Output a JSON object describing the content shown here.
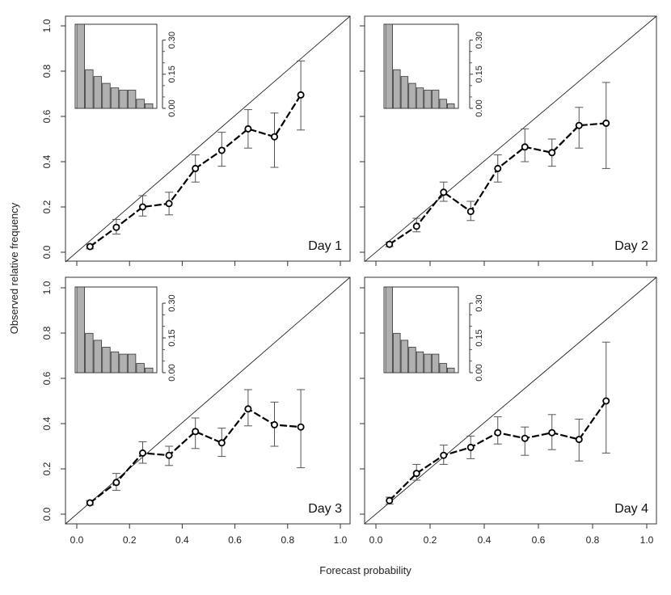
{
  "chart_data": [
    {
      "type": "line",
      "panel_label": "Day 1",
      "x": [
        0.05,
        0.15,
        0.25,
        0.35,
        0.45,
        0.55,
        0.65,
        0.75,
        0.85
      ],
      "y": [
        0.025,
        0.11,
        0.2,
        0.215,
        0.37,
        0.45,
        0.545,
        0.51,
        0.695
      ],
      "err_low": [
        0.015,
        0.08,
        0.16,
        0.165,
        0.31,
        0.38,
        0.46,
        0.375,
        0.54
      ],
      "err_high": [
        0.035,
        0.145,
        0.25,
        0.265,
        0.43,
        0.53,
        0.63,
        0.615,
        0.845
      ],
      "inset_hist": [
        0.37,
        0.17,
        0.14,
        0.11,
        0.09,
        0.08,
        0.08,
        0.04,
        0.02
      ],
      "xlim": [
        0,
        1
      ],
      "ylim": [
        0,
        1
      ],
      "inset_ylim": [
        0,
        0.37
      ]
    },
    {
      "type": "line",
      "panel_label": "Day 2",
      "x": [
        0.05,
        0.15,
        0.25,
        0.35,
        0.45,
        0.55,
        0.65,
        0.75,
        0.85
      ],
      "y": [
        0.035,
        0.115,
        0.265,
        0.18,
        0.37,
        0.465,
        0.44,
        0.56,
        0.57
      ],
      "err_low": [
        0.025,
        0.09,
        0.225,
        0.14,
        0.31,
        0.4,
        0.38,
        0.46,
        0.37
      ],
      "err_high": [
        0.045,
        0.15,
        0.31,
        0.225,
        0.43,
        0.545,
        0.5,
        0.64,
        0.75
      ],
      "inset_hist": [
        0.37,
        0.17,
        0.14,
        0.11,
        0.09,
        0.08,
        0.08,
        0.04,
        0.02
      ],
      "xlim": [
        0,
        1
      ],
      "ylim": [
        0,
        1
      ],
      "inset_ylim": [
        0,
        0.37
      ]
    },
    {
      "type": "line",
      "panel_label": "Day 3",
      "x": [
        0.05,
        0.15,
        0.25,
        0.35,
        0.45,
        0.55,
        0.65,
        0.75,
        0.85
      ],
      "y": [
        0.05,
        0.14,
        0.27,
        0.26,
        0.365,
        0.315,
        0.465,
        0.395,
        0.385
      ],
      "err_low": [
        0.04,
        0.105,
        0.225,
        0.215,
        0.29,
        0.255,
        0.39,
        0.3,
        0.205
      ],
      "err_high": [
        0.06,
        0.18,
        0.32,
        0.3,
        0.425,
        0.38,
        0.55,
        0.495,
        0.55
      ],
      "inset_hist": [
        0.37,
        0.17,
        0.14,
        0.11,
        0.09,
        0.08,
        0.08,
        0.04,
        0.02
      ],
      "xlim": [
        0,
        1
      ],
      "ylim": [
        0,
        1
      ],
      "inset_ylim": [
        0,
        0.37
      ]
    },
    {
      "type": "line",
      "panel_label": "Day 4",
      "x": [
        0.05,
        0.15,
        0.25,
        0.35,
        0.45,
        0.55,
        0.65,
        0.75,
        0.85
      ],
      "y": [
        0.06,
        0.18,
        0.26,
        0.295,
        0.36,
        0.335,
        0.36,
        0.33,
        0.5
      ],
      "err_low": [
        0.045,
        0.15,
        0.22,
        0.245,
        0.31,
        0.26,
        0.285,
        0.235,
        0.27
      ],
      "err_high": [
        0.075,
        0.22,
        0.305,
        0.345,
        0.43,
        0.385,
        0.44,
        0.42,
        0.76
      ],
      "inset_hist": [
        0.37,
        0.17,
        0.14,
        0.11,
        0.09,
        0.08,
        0.08,
        0.04,
        0.02
      ],
      "xlim": [
        0,
        1
      ],
      "ylim": [
        0,
        1
      ],
      "inset_ylim": [
        0,
        0.37
      ]
    }
  ],
  "axes": {
    "xlabel": "Forecast probability",
    "ylabel": "Observed relative frequency",
    "x_ticks": [
      "0.0",
      "0.2",
      "0.4",
      "0.6",
      "0.8",
      "1.0"
    ],
    "y_ticks": [
      "0.0",
      "0.2",
      "0.4",
      "0.6",
      "0.8",
      "1.0"
    ],
    "inset_ticks": [
      "0.00",
      "0.15",
      "0.30"
    ],
    "inset_tick_values": [
      0,
      0.15,
      0.3
    ]
  },
  "colors": {
    "line": "#000000",
    "error_bar": "#555555",
    "diagonal": "#222222",
    "bar_fill": "#b0b0b0",
    "bar_stroke": "#333333",
    "frame": "#333333"
  }
}
